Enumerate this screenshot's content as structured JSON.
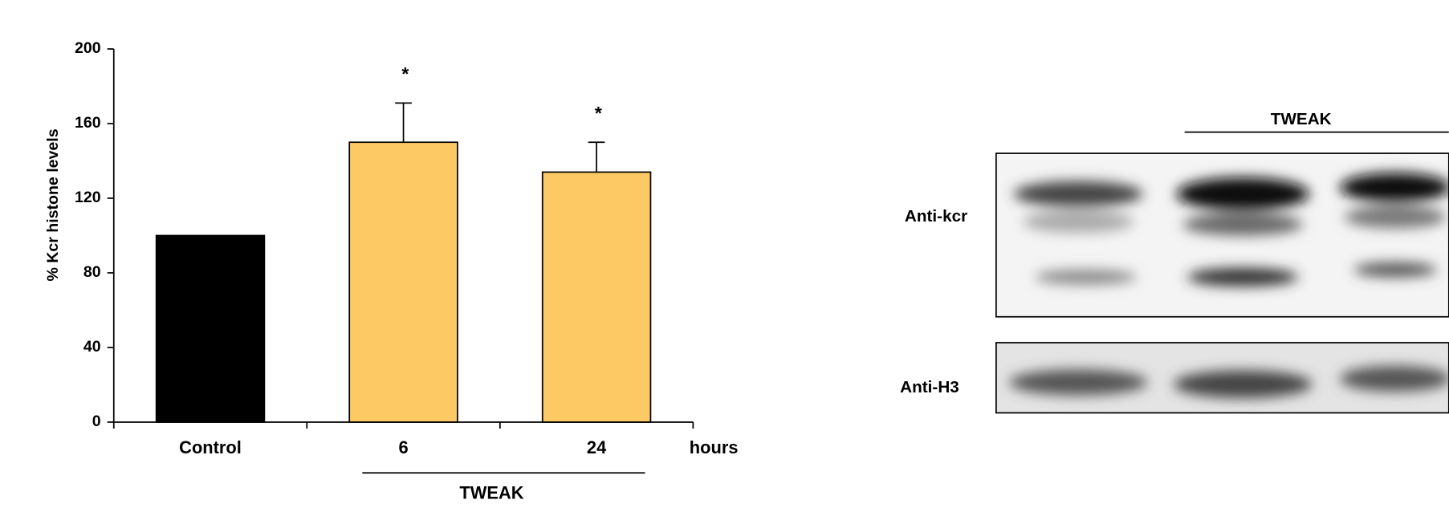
{
  "chart_data": {
    "type": "bar",
    "ylabel": "% Kcr  histone levels",
    "x_unit_label": "hours",
    "group_label": "TWEAK",
    "categories": [
      "Control",
      "6",
      "24"
    ],
    "values": [
      100,
      150,
      134
    ],
    "errors": [
      null,
      21,
      16
    ],
    "colors": [
      "#000000",
      "#fdc964",
      "#fdc964"
    ],
    "significance": [
      null,
      "*",
      "*"
    ],
    "ylim": [
      0,
      200
    ],
    "yticks": [
      0,
      40,
      80,
      120,
      160,
      200
    ]
  },
  "blot": {
    "group_label": "TWEAK",
    "rows": [
      "Anti-kcr",
      "Anti-H3"
    ]
  }
}
